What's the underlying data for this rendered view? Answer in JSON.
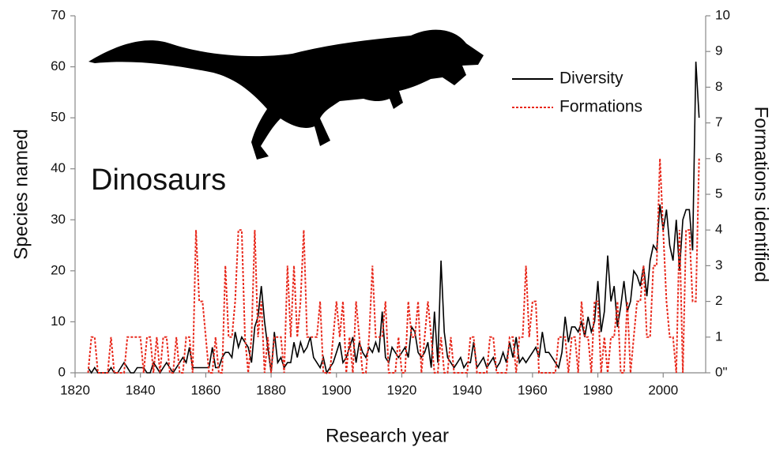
{
  "chart_data": {
    "type": "line",
    "annotation": "Dinosaurs",
    "x_label": "Research year",
    "y_label": "Species named",
    "y2_label": "Formations identified",
    "x": [
      1824,
      1825,
      1826,
      1827,
      1828,
      1829,
      1830,
      1831,
      1832,
      1833,
      1834,
      1835,
      1836,
      1837,
      1838,
      1839,
      1840,
      1841,
      1842,
      1843,
      1844,
      1845,
      1846,
      1847,
      1848,
      1849,
      1850,
      1851,
      1852,
      1853,
      1854,
      1855,
      1856,
      1857,
      1858,
      1859,
      1860,
      1861,
      1862,
      1863,
      1864,
      1865,
      1866,
      1867,
      1868,
      1869,
      1870,
      1871,
      1872,
      1873,
      1874,
      1875,
      1876,
      1877,
      1878,
      1879,
      1880,
      1881,
      1882,
      1883,
      1884,
      1885,
      1886,
      1887,
      1888,
      1889,
      1890,
      1891,
      1892,
      1893,
      1894,
      1895,
      1896,
      1897,
      1898,
      1899,
      1900,
      1901,
      1902,
      1903,
      1904,
      1905,
      1906,
      1907,
      1908,
      1909,
      1910,
      1911,
      1912,
      1913,
      1914,
      1915,
      1916,
      1917,
      1918,
      1919,
      1920,
      1921,
      1922,
      1923,
      1924,
      1925,
      1926,
      1927,
      1928,
      1929,
      1930,
      1931,
      1932,
      1933,
      1934,
      1935,
      1936,
      1937,
      1938,
      1939,
      1940,
      1941,
      1942,
      1943,
      1944,
      1945,
      1946,
      1947,
      1948,
      1949,
      1950,
      1951,
      1952,
      1953,
      1954,
      1955,
      1956,
      1957,
      1958,
      1959,
      1960,
      1961,
      1962,
      1963,
      1964,
      1965,
      1966,
      1967,
      1968,
      1969,
      1970,
      1971,
      1972,
      1973,
      1974,
      1975,
      1976,
      1977,
      1978,
      1979,
      1980,
      1981,
      1982,
      1983,
      1984,
      1985,
      1986,
      1987,
      1988,
      1989,
      1990,
      1991,
      1992,
      1993,
      1994,
      1995,
      1996,
      1997,
      1998,
      1999,
      2000,
      2001,
      2002,
      2003,
      2004,
      2005,
      2006,
      2007,
      2008,
      2009,
      2010,
      2011
    ],
    "series": [
      {
        "name": "Diversity",
        "color": "#000000",
        "dash": false,
        "axis": "y",
        "values": [
          1,
          0,
          1,
          0,
          0,
          0,
          0,
          1,
          0,
          0,
          1,
          2,
          1,
          0,
          0,
          1,
          1,
          1,
          0,
          0,
          2,
          1,
          0,
          1,
          2,
          1,
          0,
          1,
          2,
          3,
          2,
          5,
          1,
          1,
          1,
          1,
          1,
          1,
          5,
          1,
          1,
          3,
          4,
          4,
          3,
          8,
          5,
          7,
          6,
          5,
          2,
          9,
          11,
          17,
          10,
          5,
          0,
          8,
          2,
          3,
          1,
          2,
          2,
          6,
          3,
          6,
          4,
          5,
          7,
          3,
          2,
          1,
          3,
          0,
          1,
          2,
          4,
          6,
          2,
          3,
          5,
          7,
          2,
          6,
          4,
          3,
          5,
          4,
          6,
          4,
          12,
          3,
          2,
          5,
          4,
          3,
          4,
          5,
          3,
          9,
          8,
          4,
          3,
          4,
          6,
          1,
          12,
          2,
          22,
          8,
          3,
          2,
          1,
          2,
          3,
          1,
          2,
          2,
          6,
          1,
          2,
          3,
          1,
          2,
          3,
          1,
          2,
          4,
          2,
          6,
          3,
          7,
          2,
          3,
          2,
          3,
          4,
          5,
          3,
          8,
          4,
          4,
          3,
          2,
          1,
          4,
          11,
          6,
          9,
          9,
          8,
          10,
          7,
          11,
          8,
          10,
          18,
          8,
          12,
          23,
          14,
          17,
          9,
          13,
          18,
          12,
          14,
          20,
          19,
          17,
          21,
          15,
          22,
          25,
          24,
          33,
          28,
          32,
          25,
          22,
          30,
          20,
          30,
          32,
          32,
          24,
          61,
          50
        ]
      },
      {
        "name": "Formations",
        "color": "#e8291c",
        "dash": true,
        "axis": "y2",
        "values": [
          0,
          1,
          1,
          0,
          0,
          0,
          0,
          1,
          0,
          0,
          0,
          0,
          1,
          1,
          1,
          1,
          1,
          0,
          1,
          1,
          0,
          1,
          0,
          1,
          1,
          0,
          0,
          1,
          0,
          0,
          1,
          1,
          0,
          4,
          2,
          2,
          1,
          0,
          0,
          1,
          0,
          0,
          3,
          1,
          1,
          2,
          4,
          4,
          1,
          0,
          1,
          4,
          1,
          2,
          0,
          1,
          0,
          1,
          1,
          1,
          0,
          3,
          1,
          3,
          1,
          2,
          4,
          1,
          1,
          1,
          1,
          2,
          0,
          0,
          0,
          1,
          2,
          1,
          2,
          0,
          1,
          0,
          2,
          1,
          0,
          0,
          1,
          3,
          1,
          1,
          1,
          2,
          0,
          0,
          0,
          1,
          0,
          0,
          2,
          1,
          1,
          2,
          0,
          1,
          2,
          1,
          0,
          0,
          1,
          0,
          0,
          1,
          0,
          0,
          0,
          0,
          0,
          1,
          1,
          0,
          0,
          0,
          0,
          1,
          1,
          0,
          0,
          0,
          0,
          1,
          1,
          0,
          1,
          1,
          3,
          1,
          2,
          2,
          0,
          0,
          0,
          0,
          0,
          0,
          1,
          1,
          1,
          0,
          1,
          1,
          0,
          2,
          1,
          1,
          0,
          2,
          2,
          0,
          1,
          0,
          1,
          1,
          2,
          0,
          0,
          2,
          0,
          1,
          2,
          2,
          3,
          1,
          1,
          3,
          3,
          6,
          4,
          2,
          1,
          1,
          0,
          4,
          0,
          4,
          4,
          2,
          2,
          6
        ]
      }
    ],
    "xlim": [
      1820,
      2013
    ],
    "xticks": [
      1820,
      1840,
      1860,
      1880,
      1900,
      1920,
      1940,
      1960,
      1980,
      2000
    ],
    "ylim": [
      0,
      70
    ],
    "yticks": [
      0,
      10,
      20,
      30,
      40,
      50,
      60,
      70
    ],
    "y2lim": [
      0,
      10
    ],
    "y2ticks": [
      {
        "value": 0,
        "label": "0\""
      },
      1,
      2,
      3,
      4,
      5,
      6,
      7,
      8,
      9,
      10
    ]
  }
}
